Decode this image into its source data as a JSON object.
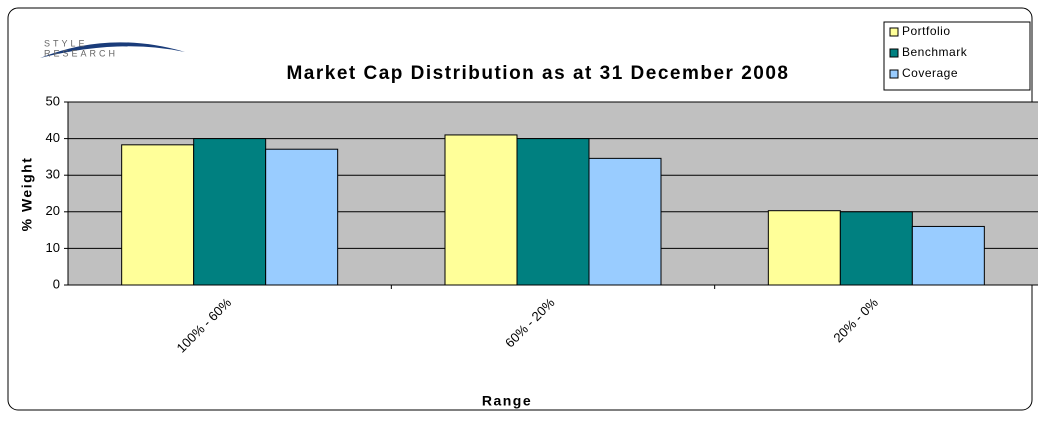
{
  "chart_data": {
    "type": "bar",
    "title": "Market Cap Distribution as at 31 December 2008",
    "logo": [
      "STYLE",
      "RESEARCH"
    ],
    "x_label": "Range",
    "y_label": "% Weight",
    "categories": [
      "100% - 60%",
      "60% - 20%",
      "20% - 0%"
    ],
    "series": [
      {
        "name": "Portfolio",
        "color": "#ffff99",
        "values": [
          38.3,
          41,
          20.3
        ]
      },
      {
        "name": "Benchmark",
        "color": "#008080",
        "values": [
          40,
          40,
          20
        ]
      },
      {
        "name": "Coverage",
        "color": "#99ccff",
        "values": [
          37.1,
          34.6,
          16
        ]
      }
    ],
    "ylim": [
      0,
      50
    ],
    "yticks": [
      0,
      10,
      20,
      30,
      40,
      50
    ],
    "grid": true,
    "legend": "top-right"
  }
}
